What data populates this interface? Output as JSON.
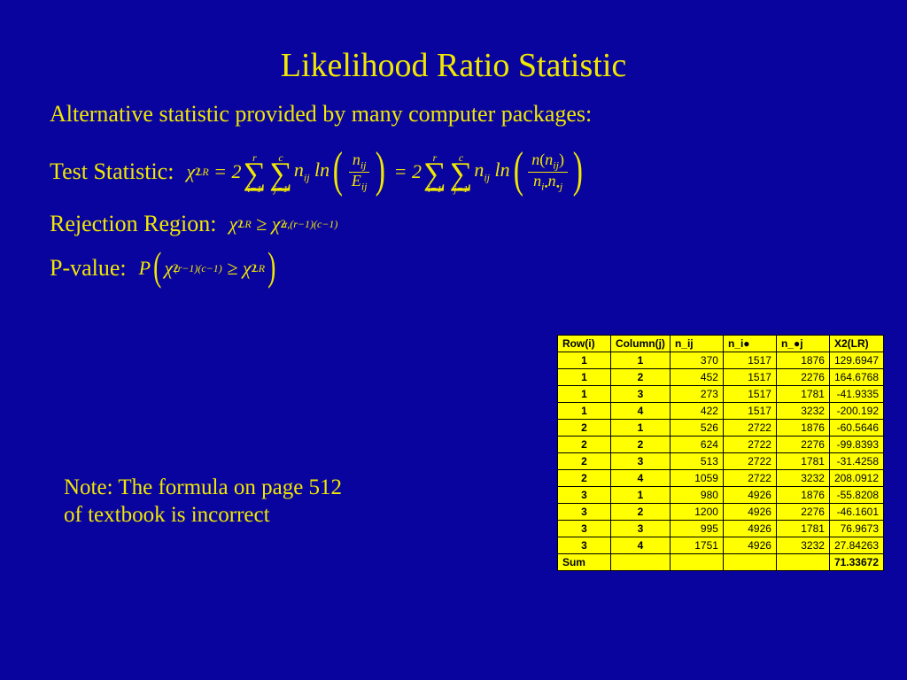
{
  "title": "Likelihood Ratio Statistic",
  "subtitle": "Alternative statistic provided by many computer packages:",
  "labels": {
    "test_statistic": "Test Statistic:",
    "rejection_region": "Rejection Region:",
    "p_value": "P-value:"
  },
  "note": "Note: The formula on page 512 of textbook is incorrect",
  "table": {
    "columns": [
      "Row(i)",
      "Column(j)",
      "n_ij",
      "n_i●",
      "n_●j",
      "X2(LR)"
    ],
    "rows": [
      [
        "1",
        "1",
        "370",
        "1517",
        "1876",
        "129.6947"
      ],
      [
        "1",
        "2",
        "452",
        "1517",
        "2276",
        "164.6768"
      ],
      [
        "1",
        "3",
        "273",
        "1517",
        "1781",
        "-41.9335"
      ],
      [
        "1",
        "4",
        "422",
        "1517",
        "3232",
        "-200.192"
      ],
      [
        "2",
        "1",
        "526",
        "2722",
        "1876",
        "-60.5646"
      ],
      [
        "2",
        "2",
        "624",
        "2722",
        "2276",
        "-99.8393"
      ],
      [
        "2",
        "3",
        "513",
        "2722",
        "1781",
        "-31.4258"
      ],
      [
        "2",
        "4",
        "1059",
        "2722",
        "3232",
        "208.0912"
      ],
      [
        "3",
        "1",
        "980",
        "4926",
        "1876",
        "-55.8208"
      ],
      [
        "3",
        "2",
        "1200",
        "4926",
        "2276",
        "-46.1601"
      ],
      [
        "3",
        "3",
        "995",
        "4926",
        "1781",
        "76.9673"
      ],
      [
        "3",
        "4",
        "1751",
        "4926",
        "3232",
        "27.84263"
      ]
    ],
    "sum_label": "Sum",
    "sum_value": "71.33672"
  },
  "colors": {
    "background": "#0a049f",
    "text": "#f0e800",
    "table_bg": "#ffff00",
    "table_text": "#000000"
  }
}
